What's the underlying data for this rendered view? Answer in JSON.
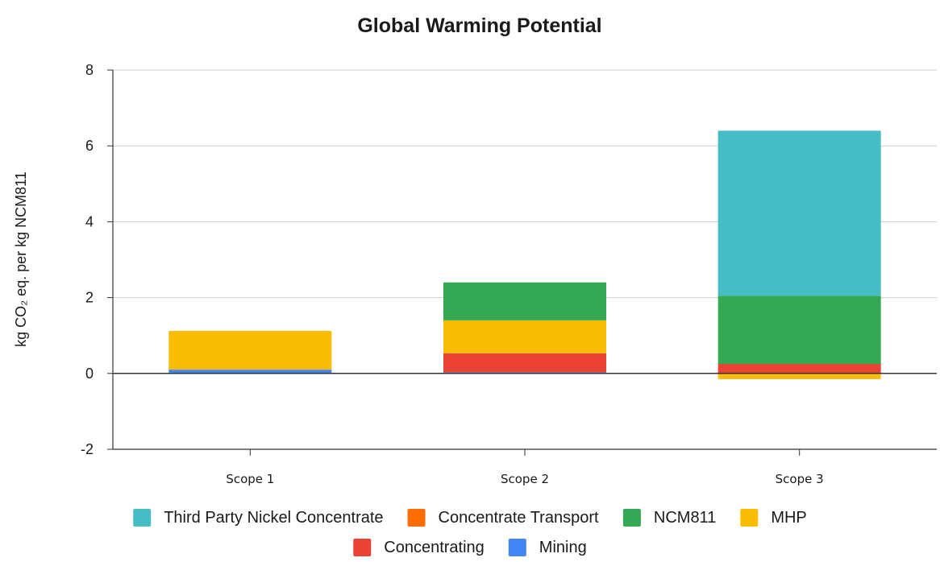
{
  "chart_data": {
    "type": "bar",
    "stacked": true,
    "title": "Global Warming Potential",
    "xlabel": "",
    "ylabel": "kg CO₂ eq. per kg NCM811",
    "ylim": [
      -2,
      8
    ],
    "yticks": [
      -2,
      0,
      2,
      4,
      6,
      8
    ],
    "grid": true,
    "legend_position": "bottom",
    "categories": [
      "Scope 1",
      "Scope 2",
      "Scope 3"
    ],
    "series": [
      {
        "name": "Mining",
        "color": "#4285f4",
        "values": [
          0.1,
          0.03,
          0.0
        ]
      },
      {
        "name": "Concentrating",
        "color": "#ea4335",
        "values": [
          0.0,
          0.5,
          0.25
        ]
      },
      {
        "name": "MHP",
        "color": "#fbbc04",
        "values": [
          1.02,
          0.87,
          -0.15
        ]
      },
      {
        "name": "NCM811",
        "color": "#34a853",
        "values": [
          0.0,
          1.0,
          1.8
        ]
      },
      {
        "name": "Concentrate Transport",
        "color": "#ff6d01",
        "values": [
          0.0,
          0.0,
          0.0
        ]
      },
      {
        "name": "Third Party Nickel Concentrate",
        "color": "#46bdc6",
        "values": [
          0.0,
          0.0,
          4.35
        ]
      }
    ],
    "legend_order": [
      "Third Party Nickel Concentrate",
      "Concentrate Transport",
      "NCM811",
      "MHP",
      "Concentrating",
      "Mining"
    ]
  }
}
